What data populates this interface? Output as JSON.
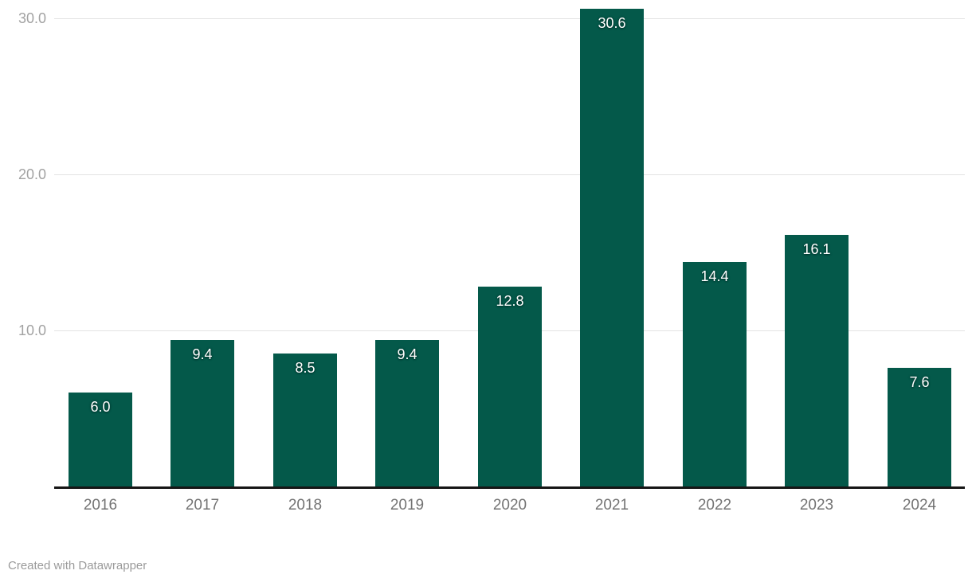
{
  "chart_data": {
    "type": "bar",
    "title": "",
    "xlabel": "",
    "ylabel": "",
    "categories": [
      "2016",
      "2017",
      "2018",
      "2019",
      "2020",
      "2021",
      "2022",
      "2023",
      "2024"
    ],
    "values": [
      6.0,
      9.4,
      8.5,
      9.4,
      12.8,
      30.6,
      14.4,
      16.1,
      7.6
    ],
    "bar_labels": [
      "6.0",
      "9.4",
      "8.5",
      "9.4",
      "12.8",
      "30.6",
      "14.4",
      "16.1",
      "7.6"
    ],
    "y_ticks": [
      {
        "value": 10,
        "label": "10.0"
      },
      {
        "value": 20,
        "label": "20.0"
      },
      {
        "value": 30,
        "label": "30.0"
      }
    ],
    "ylim": [
      0,
      31.2
    ],
    "grid": "horizontal",
    "legend": "none",
    "bar_color": "#04594a",
    "value_label_color": "#ffffff",
    "gridline_color": "#e2e2e2",
    "axis_line_color": "#161616",
    "tick_label_color": "#a2a2a2",
    "category_label_color": "#737373"
  },
  "footer": {
    "credit": "Created with Datawrapper",
    "color": "#9a9a9a"
  }
}
